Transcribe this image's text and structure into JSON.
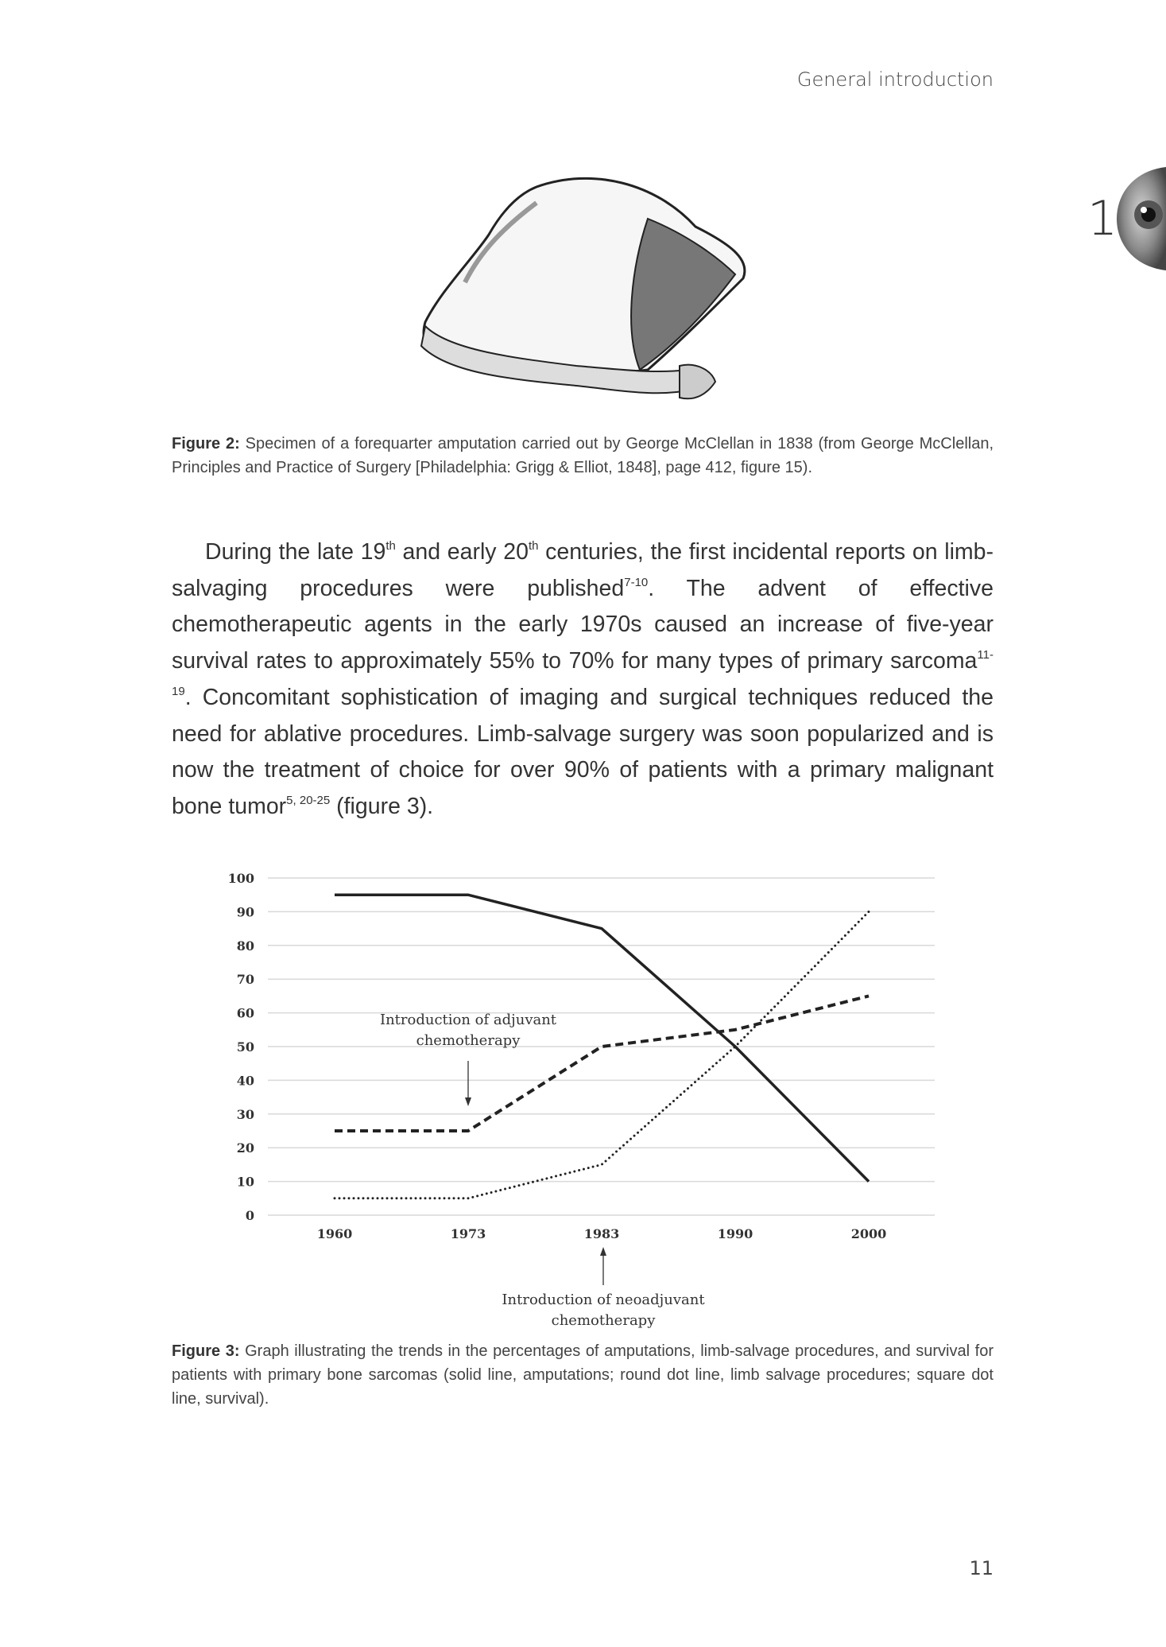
{
  "header": {
    "running_title": "General introduction",
    "chapter_number": "1"
  },
  "figure2": {
    "label": "Figure 2:",
    "caption": " Specimen of a forequarter amputation carried out by George McClellan in 1838 (from George McClellan, Principles and Practice of Surgery [Philadelphia: Grigg & Elliot, 1848], page 412, figure 15)."
  },
  "body": {
    "t1": "During the late 19",
    "s1": "th",
    "t2": " and early 20",
    "s2": "th",
    "t3": " centuries, the first incidental reports on limb-salvaging procedures were published",
    "s3": "7-10",
    "t4": ". The advent of effective chemotherapeutic agents in the early 1970s caused an increase of five-year survival rates to approximately 55% to 70% for many types of primary sarcoma",
    "s4": "11-19",
    "t5": ". Concomitant sophistication of imaging and surgical techniques reduced the need for ablative procedures. Limb-salvage surgery was soon popularized and is now the treatment of choice for over 90% of patients with a primary malignant bone tumor",
    "s5": "5, 20-25",
    "t6": " (figure 3)."
  },
  "chart_data": {
    "type": "line",
    "categories": [
      "1960",
      "1973",
      "1983",
      "1990",
      "2000"
    ],
    "series": [
      {
        "style": "solid",
        "values": [
          95,
          95,
          85,
          50,
          10
        ]
      },
      {
        "style": "square-dot",
        "values": [
          25,
          25,
          50,
          55,
          65
        ]
      },
      {
        "style": "round-dot",
        "values": [
          5,
          5,
          15,
          50,
          90
        ]
      }
    ],
    "ylim": [
      0,
      100
    ],
    "yticks": [
      "0",
      "10",
      "20",
      "30",
      "40",
      "50",
      "60",
      "70",
      "80",
      "90",
      "100"
    ],
    "grid": true,
    "annotations": [
      {
        "lines": [
          "Introduction of adjuvant",
          "chemotherapy"
        ],
        "at": "1973",
        "arrow": "down"
      },
      {
        "lines": [
          "Introduction of neoadjuvant",
          "chemotherapy"
        ],
        "at": "1983",
        "arrow": "up"
      }
    ]
  },
  "figure3": {
    "label": "Figure 3:",
    "caption": " Graph illustrating the trends in the percentages of amputations, limb-salvage procedures, and survival for patients with primary bone sarcomas (solid line, amputations; round dot line, limb salvage procedures; square dot line, survival)."
  },
  "footer": {
    "page_number": "11"
  }
}
